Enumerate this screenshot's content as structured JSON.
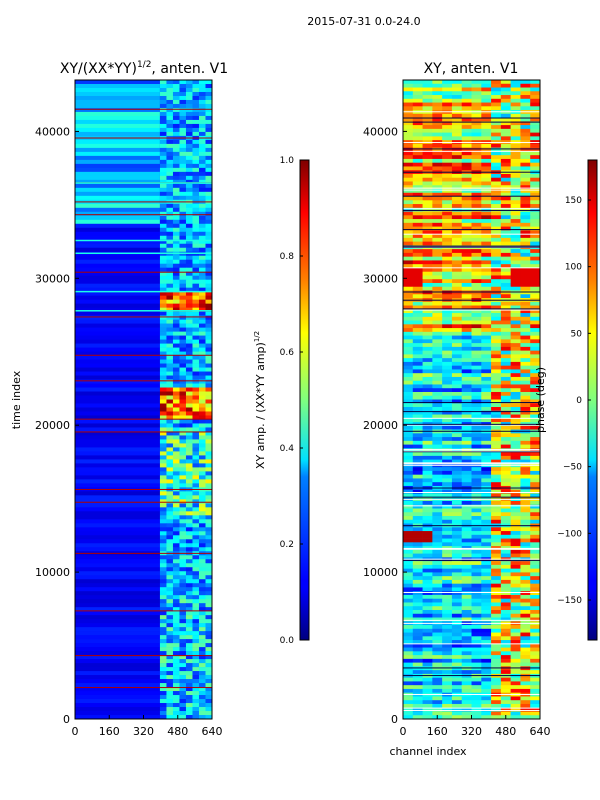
{
  "suptitle": "2015-07-31 0.0-24.0",
  "chart_data": [
    {
      "type": "heatmap",
      "title": "XY/(XX*YY)",
      "title_sup": "1/2",
      "title_suffix": ", anten. V1",
      "xlabel": "",
      "ylabel": "time index",
      "xlim": [
        0,
        640
      ],
      "ylim": [
        0,
        43500
      ],
      "xticks": [
        "0",
        "160",
        "320",
        "480",
        "640"
      ],
      "yticks": [
        "0",
        "10000",
        "20000",
        "30000",
        "40000"
      ],
      "colorbar": {
        "label": "XY amp. / (XX*YY amp)",
        "label_sup": "1/2",
        "range": [
          0.0,
          1.0
        ],
        "ticks": [
          "0.0",
          "0.2",
          "0.4",
          "0.6",
          "0.8",
          "1.0"
        ]
      }
    },
    {
      "type": "heatmap",
      "title": "XY, anten. V1",
      "xlabel": "channel index",
      "ylabel": "",
      "xlim": [
        0,
        640
      ],
      "ylim": [
        0,
        43500
      ],
      "xticks": [
        "0",
        "160",
        "320",
        "480",
        "640"
      ],
      "yticks": [
        "0",
        "10000",
        "20000",
        "30000",
        "40000"
      ],
      "colorbar": {
        "label": "phase (deg)",
        "range": [
          -180,
          180
        ],
        "ticks": [
          "−150",
          "−100",
          "−50",
          "0",
          "50",
          "100",
          "150"
        ]
      }
    }
  ],
  "colors": {
    "jet_low": "#00007f",
    "jet_mid": "#7fff7f",
    "jet_high": "#7f0000"
  }
}
